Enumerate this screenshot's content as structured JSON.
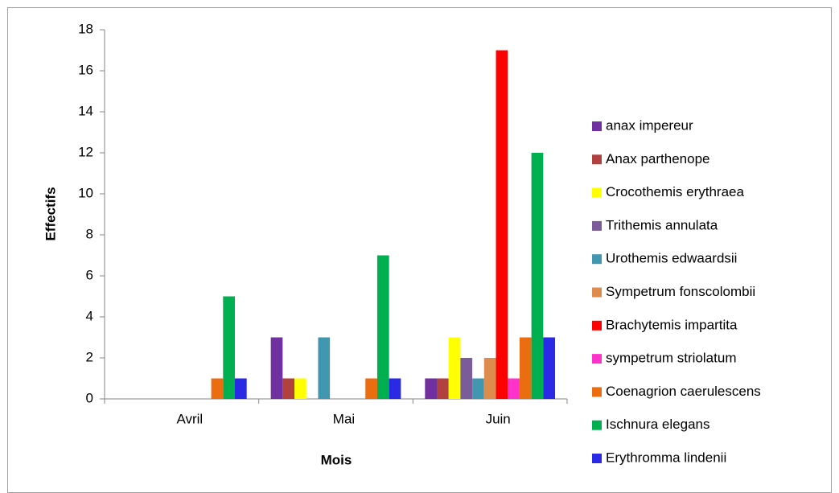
{
  "chart_data": {
    "type": "bar",
    "y_label": "Effectifs",
    "x_label": "Mois",
    "categories": [
      "Avril",
      "Mai",
      "Juin"
    ],
    "series": [
      {
        "name": "anax impereur",
        "color": "#7030a0",
        "values": [
          0,
          3,
          1
        ]
      },
      {
        "name": "Anax parthenope",
        "color": "#b0413e",
        "values": [
          0,
          1,
          1
        ]
      },
      {
        "name": "Crocothemis erythraea",
        "color": "#ffff00",
        "values": [
          0,
          1,
          3
        ]
      },
      {
        "name": "Trithemis annulata",
        "color": "#7a5c99",
        "values": [
          0,
          0,
          2
        ]
      },
      {
        "name": "Urothemis edwaardsii",
        "color": "#4197b0",
        "values": [
          0,
          3,
          1
        ]
      },
      {
        "name": "Sympetrum fonscolombii",
        "color": "#dd8c4e",
        "values": [
          0,
          0,
          2
        ]
      },
      {
        "name": "Brachytemis impartita",
        "color": "#ff0000",
        "values": [
          0,
          0,
          17
        ]
      },
      {
        "name": "sympetrum striolatum",
        "color": "#ff33cc",
        "values": [
          0,
          0,
          1
        ]
      },
      {
        "name": "Coenagrion caerulescens",
        "color": "#ea6d10",
        "values": [
          1,
          1,
          3
        ]
      },
      {
        "name": "Ischnura elegans",
        "color": "#00b050",
        "values": [
          5,
          7,
          12
        ]
      },
      {
        "name": "Erythromma lindenii",
        "color": "#2a2ae6",
        "values": [
          1,
          1,
          3
        ]
      }
    ],
    "ylim": [
      0,
      18
    ],
    "yticks": [
      0,
      2,
      4,
      6,
      8,
      10,
      12,
      14,
      16,
      18
    ],
    "grid": false,
    "legend": "right"
  }
}
